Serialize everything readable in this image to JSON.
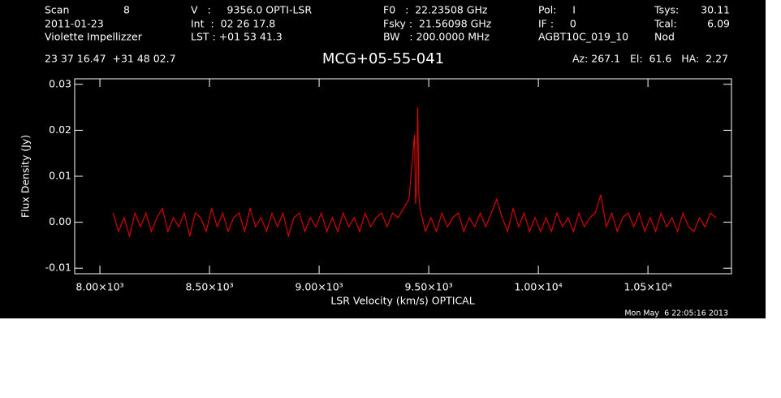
{
  "chart_data": {
    "type": "line",
    "title": "MCG+05-55-041",
    "header": [
      "Scan",
      "8",
      "2011-01-23",
      "Violette Impellizzer",
      "V   :     9356.0 OPTI-LSR",
      "Int  :  02 26 17.8",
      "LST : +01 53 41.3",
      "F0   :  22.23508 GHz",
      "Fsky :  21.56098 GHz",
      "BW   : 200.0000 MHz",
      "Pol:     I",
      "IF :     0",
      "AGBT10C_019_10",
      "Tsys:",
      "30.11",
      "Tcal:",
      "6.09",
      "Nod",
      "23 37 16.47  +31 48 02.7",
      "Az: 267.1   El:  61.6   HA:  2.27"
    ],
    "footer": "Mon May  6 22:05:16 2013",
    "x_label": "LSR Velocity (km/s) OPTICAL",
    "y_label": "Flux Density (Jy)",
    "xlim": [
      7885,
      10881
    ],
    "ylim": [
      -0.0112,
      0.0312
    ],
    "xticks": [
      {
        "value": 8000,
        "label": "8.00×10³"
      },
      {
        "value": 8500,
        "label": "8.50×10³"
      },
      {
        "value": 9000,
        "label": "9.00×10³"
      },
      {
        "value": 9500,
        "label": "9.50×10³"
      },
      {
        "value": 10000,
        "label": "1.00×10⁴"
      },
      {
        "value": 10500,
        "label": "1.05×10⁴"
      }
    ],
    "yticks": [
      0.03,
      0.02,
      0.01,
      {
        "value": 0,
        "label": "0.00"
      },
      -0.01
    ],
    "x": [
      8060,
      8085,
      8110,
      8135,
      8160,
      8185,
      8210,
      8235,
      8260,
      8285,
      8310,
      8335,
      8360,
      8385,
      8410,
      8435,
      8460,
      8485,
      8510,
      8535,
      8560,
      8585,
      8610,
      8635,
      8660,
      8685,
      8710,
      8735,
      8760,
      8785,
      8810,
      8835,
      8860,
      8885,
      8910,
      8935,
      8960,
      8985,
      9010,
      9035,
      9060,
      9085,
      9110,
      9135,
      9160,
      9185,
      9210,
      9235,
      9260,
      9285,
      9310,
      9335,
      9360,
      9385,
      9410,
      9435,
      9440,
      9445,
      9450,
      9455,
      9460,
      9485,
      9510,
      9535,
      9560,
      9585,
      9610,
      9635,
      9660,
      9685,
      9710,
      9735,
      9760,
      9785,
      9810,
      9835,
      9860,
      9885,
      9910,
      9935,
      9960,
      9985,
      10010,
      10035,
      10060,
      10085,
      10110,
      10135,
      10160,
      10185,
      10210,
      10235,
      10260,
      10285,
      10310,
      10335,
      10360,
      10385,
      10410,
      10435,
      10460,
      10485,
      10510,
      10535,
      10560,
      10585,
      10610,
      10635,
      10660,
      10685,
      10710,
      10735,
      10760,
      10785,
      10810
    ],
    "series": [
      {
        "color": "#ff0000",
        "values": [
          0.002,
          -0.002,
          0.001,
          -0.003,
          0.002,
          -0.001,
          0.002,
          -0.002,
          0.001,
          0.003,
          -0.002,
          0.001,
          -0.001,
          0.002,
          -0.003,
          0.002,
          0.001,
          -0.002,
          0.003,
          -0.001,
          0.002,
          -0.002,
          0.001,
          0.002,
          -0.002,
          0.003,
          -0.001,
          0.001,
          -0.002,
          0.002,
          -0.001,
          0.002,
          -0.003,
          0.001,
          0.002,
          -0.002,
          0.001,
          -0.001,
          0.002,
          -0.002,
          0.001,
          -0.002,
          0.002,
          -0.001,
          0.001,
          -0.002,
          0.002,
          -0.001,
          0.001,
          0.002,
          -0.001,
          0.002,
          0.001,
          0.003,
          0.005,
          0.019,
          0.004,
          0.008,
          0.025,
          0.006,
          0.003,
          -0.002,
          0.001,
          -0.002,
          0.002,
          -0.001,
          0.001,
          0.002,
          -0.002,
          0.001,
          -0.001,
          0.002,
          -0.001,
          0.002,
          0.005,
          0.001,
          -0.002,
          0.003,
          -0.001,
          0.002,
          -0.002,
          0.001,
          -0.002,
          0.001,
          -0.002,
          0.002,
          -0.001,
          0.001,
          -0.002,
          0.002,
          -0.001,
          0.001,
          0.002,
          0.006,
          -0.001,
          0.002,
          -0.002,
          0.001,
          0.002,
          -0.001,
          0.002,
          -0.002,
          0.001,
          -0.002,
          0.002,
          -0.001,
          0.001,
          -0.002,
          0.002,
          -0.001,
          -0.002,
          0.001,
          -0.001,
          0.002,
          0.001
        ]
      }
    ]
  }
}
